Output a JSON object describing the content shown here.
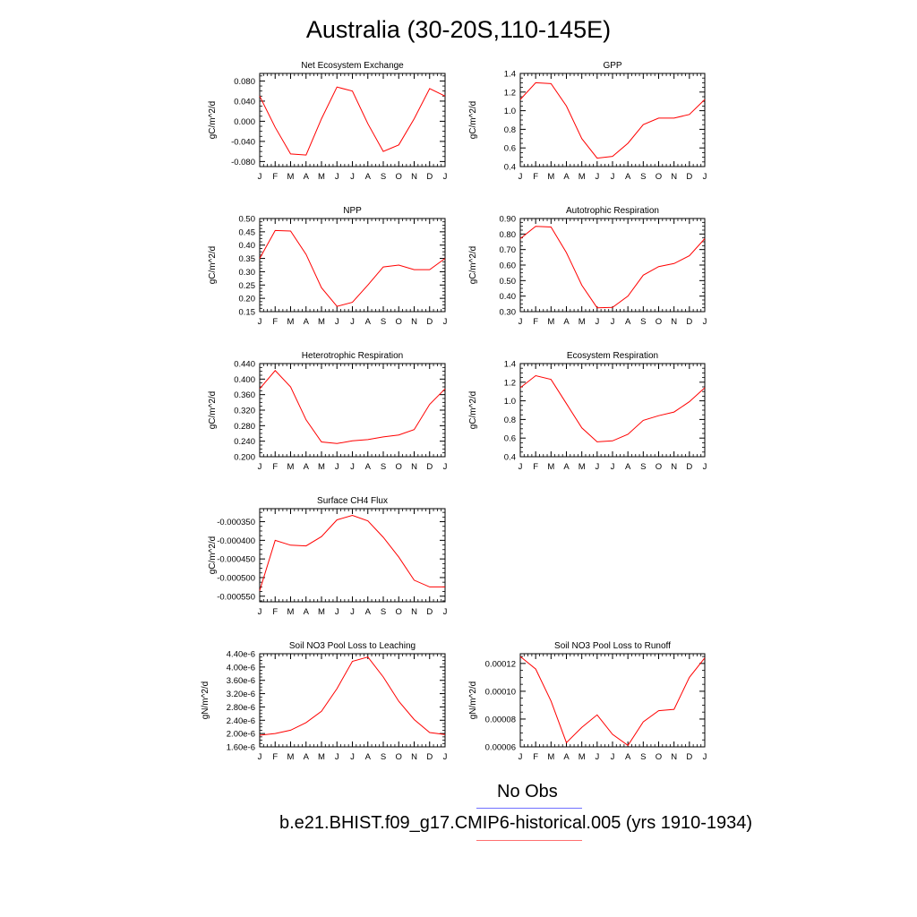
{
  "page_title": "Australia (30-20S,110-145E)",
  "legend": [
    {
      "label": "No Obs",
      "color": "#6f6fff"
    },
    {
      "label": "b.e21.BHIST.f09_g17.CMIP6-historical.005 (yrs 1910-1934)",
      "color": "#ff6f6f"
    }
  ],
  "chart_data": [
    {
      "type": "line",
      "title": "Net Ecosystem Exchange",
      "ylabel": "gC/m^2/d",
      "categories": [
        "J",
        "F",
        "M",
        "A",
        "M",
        "J",
        "J",
        "A",
        "S",
        "O",
        "N",
        "D",
        "J"
      ],
      "ylim": [
        -0.09,
        0.095
      ],
      "ticks": [
        -0.08,
        -0.04,
        0.0,
        0.04,
        0.08
      ],
      "decimals": 3,
      "series": [
        {
          "values": [
            0.05,
            -0.012,
            -0.065,
            -0.067,
            0.005,
            0.068,
            0.06,
            -0.005,
            -0.06,
            -0.047,
            0.005,
            0.065,
            0.05
          ]
        }
      ]
    },
    {
      "type": "line",
      "title": "GPP",
      "ylabel": "gC/m^2/d",
      "categories": [
        "J",
        "F",
        "M",
        "A",
        "M",
        "J",
        "J",
        "A",
        "S",
        "O",
        "N",
        "D",
        "J"
      ],
      "ylim": [
        0.4,
        1.4
      ],
      "ticks": [
        0.4,
        0.6,
        0.8,
        1.0,
        1.2,
        1.4
      ],
      "decimals": 1,
      "series": [
        {
          "values": [
            1.12,
            1.3,
            1.29,
            1.05,
            0.7,
            0.49,
            0.51,
            0.65,
            0.85,
            0.92,
            0.92,
            0.96,
            1.12
          ]
        }
      ]
    },
    {
      "type": "line",
      "title": "NPP",
      "ylabel": "gC/m^2/d",
      "categories": [
        "J",
        "F",
        "M",
        "A",
        "M",
        "J",
        "J",
        "A",
        "S",
        "O",
        "N",
        "D",
        "J"
      ],
      "ylim": [
        0.15,
        0.5
      ],
      "ticks": [
        0.15,
        0.2,
        0.25,
        0.3,
        0.35,
        0.4,
        0.45,
        0.5
      ],
      "decimals": 2,
      "series": [
        {
          "values": [
            0.35,
            0.455,
            0.453,
            0.365,
            0.24,
            0.17,
            0.185,
            0.25,
            0.318,
            0.325,
            0.308,
            0.308,
            0.35
          ]
        }
      ]
    },
    {
      "type": "line",
      "title": "Autotrophic Respiration",
      "ylabel": "gC/m^2/d",
      "categories": [
        "J",
        "F",
        "M",
        "A",
        "M",
        "J",
        "J",
        "A",
        "S",
        "O",
        "N",
        "D",
        "J"
      ],
      "ylim": [
        0.3,
        0.9
      ],
      "ticks": [
        0.3,
        0.4,
        0.5,
        0.6,
        0.7,
        0.8,
        0.9
      ],
      "decimals": 2,
      "series": [
        {
          "values": [
            0.77,
            0.85,
            0.845,
            0.68,
            0.47,
            0.325,
            0.327,
            0.4,
            0.535,
            0.59,
            0.61,
            0.66,
            0.77
          ]
        }
      ]
    },
    {
      "type": "line",
      "title": "Heterotrophic Respiration",
      "ylabel": "gC/m^2/d",
      "categories": [
        "J",
        "F",
        "M",
        "A",
        "M",
        "J",
        "J",
        "A",
        "S",
        "O",
        "N",
        "D",
        "J"
      ],
      "ylim": [
        0.2,
        0.44
      ],
      "ticks": [
        0.2,
        0.24,
        0.28,
        0.32,
        0.36,
        0.4,
        0.44
      ],
      "decimals": 3,
      "series": [
        {
          "values": [
            0.375,
            0.422,
            0.38,
            0.295,
            0.238,
            0.234,
            0.241,
            0.244,
            0.251,
            0.256,
            0.27,
            0.335,
            0.375
          ]
        }
      ]
    },
    {
      "type": "line",
      "title": "Ecosystem Respiration",
      "ylabel": "gC/m^2/d",
      "categories": [
        "J",
        "F",
        "M",
        "A",
        "M",
        "J",
        "J",
        "A",
        "S",
        "O",
        "N",
        "D",
        "J"
      ],
      "ylim": [
        0.4,
        1.4
      ],
      "ticks": [
        0.4,
        0.6,
        0.8,
        1.0,
        1.2,
        1.4
      ],
      "decimals": 1,
      "series": [
        {
          "values": [
            1.14,
            1.27,
            1.23,
            0.97,
            0.71,
            0.56,
            0.57,
            0.64,
            0.79,
            0.84,
            0.88,
            0.99,
            1.14
          ]
        }
      ]
    },
    {
      "type": "line",
      "title": "Surface CH4 Flux",
      "ylabel": "gC/m^2/d",
      "categories": [
        "J",
        "F",
        "M",
        "A",
        "M",
        "J",
        "J",
        "A",
        "S",
        "O",
        "N",
        "D",
        "J"
      ],
      "ylim": [
        -0.000565,
        -0.000315
      ],
      "ticks": [
        -0.00055,
        -0.0005,
        -0.00045,
        -0.0004,
        -0.00035
      ],
      "decimals": 6,
      "series": [
        {
          "values": [
            -0.000535,
            -0.0004,
            -0.000413,
            -0.000415,
            -0.00039,
            -0.000345,
            -0.000333,
            -0.000348,
            -0.000392,
            -0.000445,
            -0.000507,
            -0.000525,
            -0.000525
          ]
        }
      ]
    },
    {
      "type": "line",
      "title": "Soil NO3 Pool Loss to Leaching",
      "ylabel": "gN/m^2/d",
      "categories": [
        "J",
        "F",
        "M",
        "A",
        "M",
        "J",
        "J",
        "A",
        "S",
        "O",
        "N",
        "D",
        "J"
      ],
      "ylim": [
        1.6e-06,
        4.4e-06
      ],
      "format": "exp",
      "ticks": [
        1.6e-06,
        2e-06,
        2.4e-06,
        2.8e-06,
        3.2e-06,
        3.6e-06,
        4e-06,
        4.4e-06
      ],
      "tick_labels": [
        "1.60e-6",
        "2.00e-6",
        "2.40e-6",
        "2.80e-6",
        "3.20e-6",
        "3.60e-6",
        "4.00e-6",
        "4.40e-6"
      ],
      "series": [
        {
          "values": [
            1.95e-06,
            2e-06,
            2.1e-06,
            2.33e-06,
            2.67e-06,
            3.35e-06,
            4.17e-06,
            4.3e-06,
            3.7e-06,
            2.97e-06,
            2.42e-06,
            2.03e-06,
            1.97e-06
          ]
        }
      ]
    },
    {
      "type": "line",
      "title": "Soil NO3 Pool Loss to Runoff",
      "ylabel": "gN/m^2/d",
      "categories": [
        "J",
        "F",
        "M",
        "A",
        "M",
        "J",
        "J",
        "A",
        "S",
        "O",
        "N",
        "D",
        "J"
      ],
      "ylim": [
        6e-05,
        0.000127
      ],
      "ticks": [
        6e-05,
        8e-05,
        0.0001,
        0.00012
      ],
      "decimals": 5,
      "series": [
        {
          "values": [
            0.000125,
            0.000116,
            9.3e-05,
            6.3e-05,
            7.4e-05,
            8.3e-05,
            6.9e-05,
            6.1e-05,
            7.8e-05,
            8.6e-05,
            8.7e-05,
            0.00011,
            0.000124
          ]
        }
      ]
    }
  ]
}
